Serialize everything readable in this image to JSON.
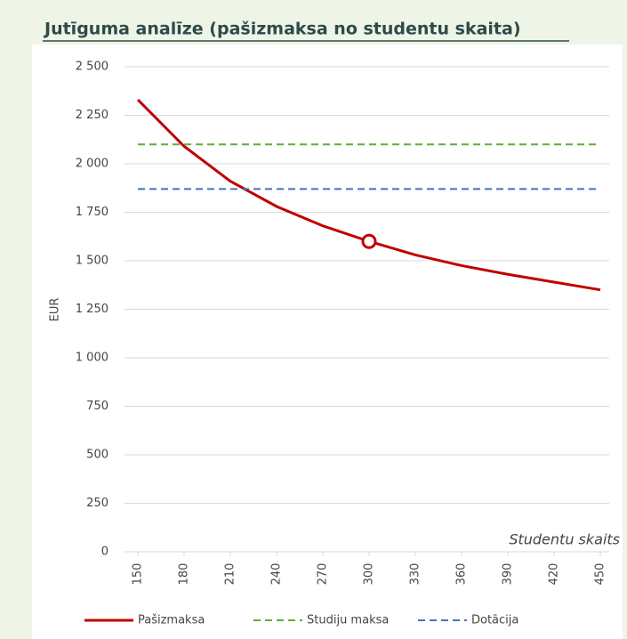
{
  "chart_data": {
    "type": "line",
    "title": "Jutīguma analīze (pašizmaksa no studentu skaita)",
    "xlabel": "Studentu skaits",
    "ylabel": "EUR",
    "x": [
      150,
      180,
      210,
      240,
      270,
      300,
      330,
      360,
      390,
      420,
      450
    ],
    "series": [
      {
        "name": "Pašizmaksa",
        "color": "#c00000",
        "dash": "solid",
        "values": [
          2330,
          2090,
          1910,
          1780,
          1680,
          1600,
          1530,
          1475,
          1430,
          1390,
          1350
        ]
      },
      {
        "name": "Studiju maksa",
        "color": "#5cb038",
        "dash": "dashed",
        "values": [
          2100,
          2100,
          2100,
          2100,
          2100,
          2100,
          2100,
          2100,
          2100,
          2100,
          2100
        ]
      },
      {
        "name": "Dotācija",
        "color": "#4472c4",
        "dash": "dashed",
        "values": [
          1870,
          1870,
          1870,
          1870,
          1870,
          1870,
          1870,
          1870,
          1870,
          1870,
          1870
        ]
      }
    ],
    "highlight_x": 300,
    "xlim": [
      150,
      450
    ],
    "xticks": [
      150,
      180,
      210,
      240,
      270,
      300,
      330,
      360,
      390,
      420,
      450
    ],
    "ylim": [
      0,
      2500
    ],
    "yticks": [
      0,
      250,
      500,
      750,
      {
        "value": 1000,
        "label": "1 000"
      },
      {
        "value": 1250,
        "label": "1 250"
      },
      {
        "value": 1500,
        "label": "1 500"
      },
      {
        "value": 1750,
        "label": "1 750"
      },
      {
        "value": 2000,
        "label": "2 000"
      },
      {
        "value": 2250,
        "label": "2 250"
      },
      {
        "value": 2500,
        "label": "2 500"
      }
    ],
    "grid": true,
    "legend": "bottom"
  }
}
